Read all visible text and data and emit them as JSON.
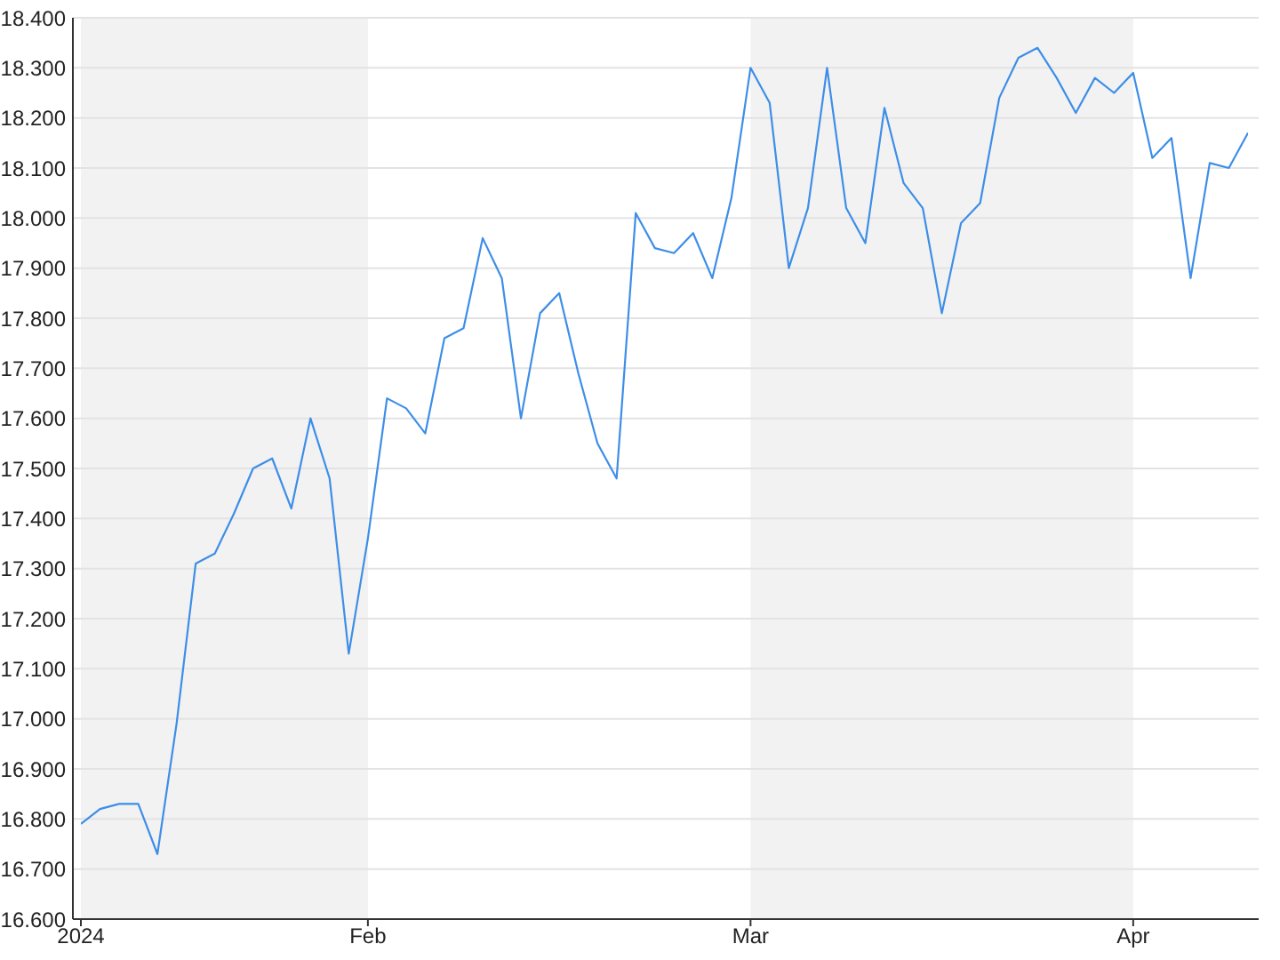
{
  "chart_data": {
    "type": "line",
    "categories": [
      "2024",
      null,
      null,
      null,
      null,
      null,
      null,
      null,
      null,
      null,
      null,
      null,
      null,
      null,
      null,
      "Feb",
      null,
      null,
      null,
      null,
      null,
      null,
      null,
      null,
      null,
      null,
      null,
      null,
      null,
      null,
      null,
      null,
      null,
      null,
      null,
      "Mar",
      null,
      null,
      null,
      null,
      null,
      null,
      null,
      null,
      null,
      null,
      null,
      null,
      null,
      null,
      null,
      null,
      null,
      null,
      null,
      "Apr",
      null,
      null,
      null,
      null,
      null,
      null
    ],
    "values": [
      16.79,
      16.82,
      16.83,
      16.83,
      16.73,
      16.99,
      17.31,
      17.33,
      17.41,
      17.5,
      17.52,
      17.42,
      17.6,
      17.48,
      17.13,
      17.36,
      17.64,
      17.62,
      17.57,
      17.76,
      17.78,
      17.96,
      17.88,
      17.6,
      17.81,
      17.85,
      17.69,
      17.55,
      17.48,
      18.01,
      17.94,
      17.93,
      17.97,
      17.88,
      18.04,
      18.3,
      18.23,
      17.9,
      18.02,
      18.3,
      18.02,
      17.95,
      18.22,
      18.07,
      18.02,
      17.81,
      17.99,
      18.03,
      18.24,
      18.32,
      18.34,
      18.28,
      18.21,
      18.28,
      18.25,
      18.29,
      18.12,
      18.16,
      17.88,
      18.11,
      18.1,
      18.17
    ],
    "color": "#3d8ee8",
    "ylim": [
      16.6,
      18.4
    ],
    "yticks": [
      {
        "value": 16.6,
        "label": "16.600"
      },
      {
        "value": 16.7,
        "label": "16.700"
      },
      {
        "value": 16.8,
        "label": "16.800"
      },
      {
        "value": 16.9,
        "label": "16.900"
      },
      {
        "value": 17.0,
        "label": "17.000"
      },
      {
        "value": 17.1,
        "label": "17.100"
      },
      {
        "value": 17.2,
        "label": "17.200"
      },
      {
        "value": 17.3,
        "label": "17.300"
      },
      {
        "value": 17.4,
        "label": "17.400"
      },
      {
        "value": 17.5,
        "label": "17.500"
      },
      {
        "value": 17.6,
        "label": "17.600"
      },
      {
        "value": 17.7,
        "label": "17.700"
      },
      {
        "value": 17.8,
        "label": "17.800"
      },
      {
        "value": 17.9,
        "label": "17.900"
      },
      {
        "value": 18.0,
        "label": "18.000"
      },
      {
        "value": 18.1,
        "label": "18.100"
      },
      {
        "value": 18.2,
        "label": "18.200"
      },
      {
        "value": 18.3,
        "label": "18.300"
      },
      {
        "value": 18.4,
        "label": "18.400"
      }
    ],
    "grid": "y",
    "bands": [
      {
        "axis": "x",
        "from": "2024",
        "to": "Feb",
        "color": "#f2f2f2"
      },
      {
        "axis": "x",
        "from": "Mar",
        "to": "Apr",
        "color": "#f2f2f2"
      }
    ]
  }
}
